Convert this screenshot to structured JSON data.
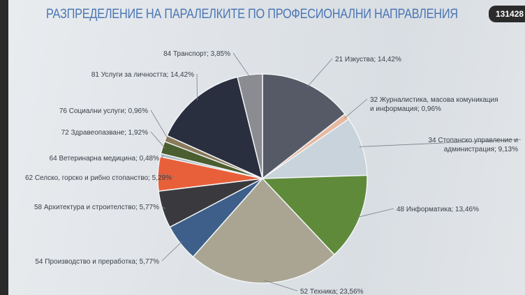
{
  "header": {
    "title": "РАЗПРЕДЕЛЕНИЕ НА ПАРАЛЕЛКИТЕ ПО ПРОФЕСИОНАЛНИ НАПРАВЛЕНИЯ",
    "badge": "131428"
  },
  "chart_data": {
    "type": "pie",
    "title": "РАЗПРЕДЕЛЕНИЕ НА ПАРАЛЕЛКИТЕ ПО ПРОФЕСИОНАЛНИ НАПРАВЛЕНИЯ",
    "start": "12 o'clock",
    "direction": "clockwise",
    "slices": [
      {
        "label": "21 Изкуства; 14,42%",
        "value": 14.42,
        "color": "#555a66"
      },
      {
        "label": "32 Журналистика, масова комуникация и информация; 0,96%",
        "lines": [
          "32 Журналистика, масова комуникация",
          "и информация; 0,96%"
        ],
        "value": 0.96,
        "color": "#e8b9a0"
      },
      {
        "label": "34 Стопанско управление и администрация; 9,13%",
        "lines": [
          "34 Стопанско управление и",
          "администрация; 9,13%"
        ],
        "value": 9.13,
        "color": "#c8d3db"
      },
      {
        "label": "48 Информатика; 13,46%",
        "value": 13.46,
        "color": "#5e8a3a"
      },
      {
        "label": "52 Техника; 23,56%",
        "value": 23.56,
        "color": "#aaa592"
      },
      {
        "label": "54 Производство и преработка; 5,77%",
        "value": 5.77,
        "color": "#3d5f8a"
      },
      {
        "label": "58 Архитектура и строителство; 5,77%",
        "value": 5.77,
        "color": "#3a3a3e"
      },
      {
        "label": "62 Селско, горско и рибно стопанство; 5,29%",
        "value": 5.29,
        "color": "#e8603a"
      },
      {
        "label": "64 Ветеринарна медицина; 0,48%",
        "value": 0.48,
        "color": "#a9b8c0"
      },
      {
        "label": "72 Здравеопазване; 1,92%",
        "value": 1.92,
        "color": "#4a5e30"
      },
      {
        "label": "76 Социални услуги; 0,96%",
        "value": 0.96,
        "color": "#8a7a5a"
      },
      {
        "label": "81 Услуги за личността; 14,42%",
        "value": 14.42,
        "color": "#2a2f40"
      },
      {
        "label": "84 Транспорт; 3,85%",
        "value": 3.85,
        "color": "#8a8c92"
      }
    ],
    "legend": "none (leader-line data labels)"
  }
}
